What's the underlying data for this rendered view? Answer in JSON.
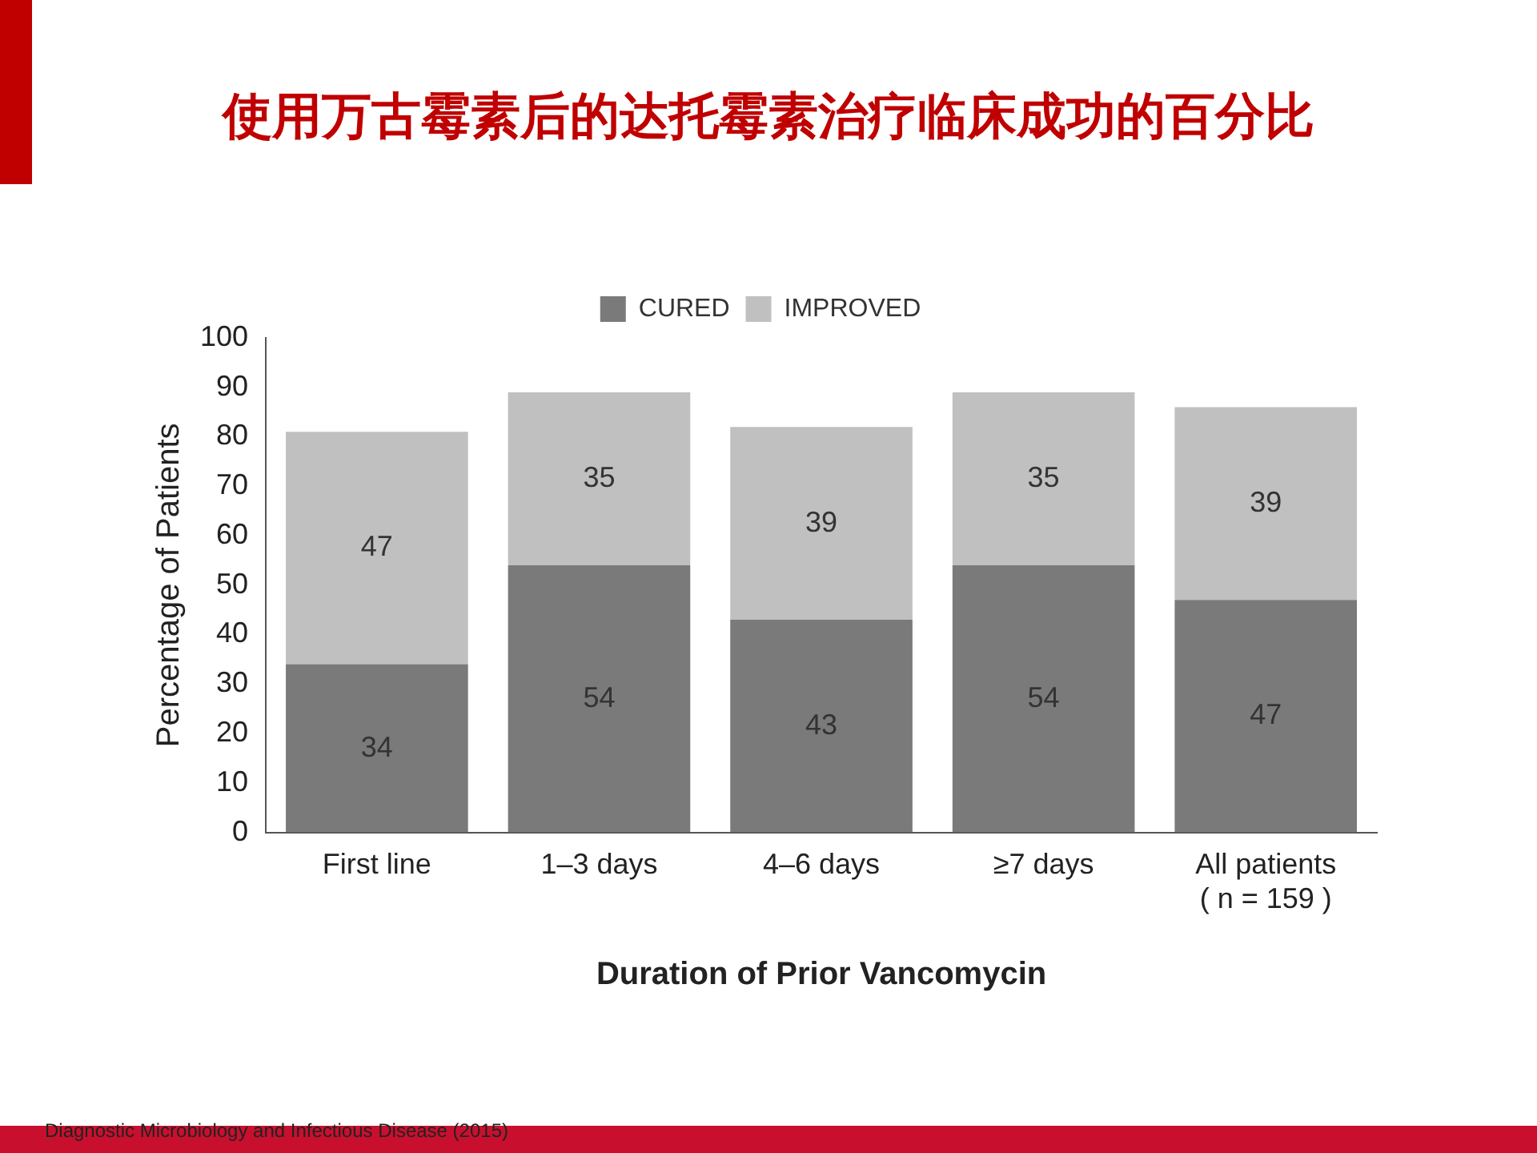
{
  "chart_data": {
    "type": "bar",
    "title": "使用万古霉素后的达托霉素治疗临床成功的百分比",
    "xlabel": "Duration of Prior Vancomycin",
    "ylabel": "Percentage of Patients",
    "categories": [
      "First line",
      "1–3 days",
      "4–6 days",
      "≥7 days",
      "All patients\n( n = 159 )"
    ],
    "stacked": true,
    "series": [
      {
        "name": "CURED",
        "color": "#7a7a7a",
        "values": [
          34,
          54,
          43,
          54,
          47
        ]
      },
      {
        "name": "IMPROVED",
        "color": "#c0c0c0",
        "values": [
          47,
          35,
          39,
          35,
          39
        ]
      }
    ],
    "ylim": [
      0,
      100
    ],
    "yticks": [
      0,
      10,
      20,
      30,
      40,
      50,
      60,
      70,
      80,
      90,
      100
    ],
    "grid": false,
    "legend": "top",
    "data_labels": true,
    "annotations": [
      "Diagnostic Microbiology and Infectious Disease (2015)"
    ]
  }
}
